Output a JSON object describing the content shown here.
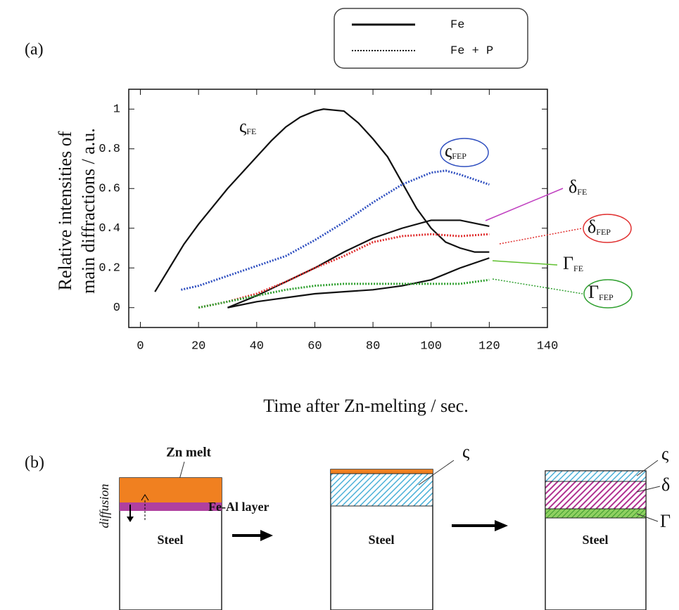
{
  "chart_data": {
    "type": "line",
    "panel_label": "(a)",
    "xlabel": "Time after Zn-melting / sec.",
    "ylabel": [
      "Relative intensities of",
      "main diffractions  / a.u."
    ],
    "xlim": [
      -4,
      140
    ],
    "xticks": [
      0,
      20,
      40,
      60,
      80,
      100,
      120,
      140
    ],
    "ylim": [
      -0.1,
      1.1
    ],
    "yticks": [
      0,
      0.2,
      0.4,
      0.6,
      0.8,
      1
    ],
    "legend": [
      {
        "name": "Fe",
        "style": "solid"
      },
      {
        "name": "Fe + P",
        "style": "dotted"
      }
    ],
    "series": [
      {
        "symbol": "ς",
        "subscript": "FE",
        "style": "solid",
        "color": "#111111",
        "label_color": "#111111",
        "x": [
          5,
          10,
          15,
          20,
          25,
          30,
          35,
          40,
          45,
          50,
          55,
          60,
          63,
          70,
          75,
          80,
          85,
          90,
          95,
          100,
          105,
          110,
          115,
          120
        ],
        "values": [
          0.08,
          0.2,
          0.32,
          0.42,
          0.51,
          0.6,
          0.68,
          0.76,
          0.84,
          0.91,
          0.96,
          0.99,
          1.0,
          0.99,
          0.93,
          0.85,
          0.76,
          0.63,
          0.5,
          0.4,
          0.33,
          0.3,
          0.28,
          0.28
        ]
      },
      {
        "symbol": "ς",
        "subscript": "FEP",
        "style": "dotted",
        "color": "#3050c0",
        "label_color": "#3050c0",
        "label_ellipse": true,
        "x": [
          14,
          20,
          30,
          40,
          50,
          60,
          70,
          80,
          90,
          100,
          105,
          110,
          120
        ],
        "values": [
          0.09,
          0.11,
          0.16,
          0.21,
          0.26,
          0.34,
          0.43,
          0.53,
          0.62,
          0.68,
          0.69,
          0.67,
          0.62
        ]
      },
      {
        "symbol": "δ",
        "subscript": "FE",
        "style": "solid",
        "color": "#111111",
        "label_color": "#c040c0",
        "x": [
          30,
          40,
          50,
          60,
          70,
          80,
          90,
          100,
          110,
          120
        ],
        "values": [
          0.0,
          0.06,
          0.13,
          0.2,
          0.28,
          0.35,
          0.4,
          0.44,
          0.44,
          0.41
        ]
      },
      {
        "symbol": "δ",
        "subscript": "FEP",
        "style": "dotted",
        "color": "#e03030",
        "label_color": "#e03030",
        "label_ellipse": true,
        "x": [
          20,
          30,
          40,
          50,
          60,
          70,
          80,
          90,
          100,
          110,
          120
        ],
        "values": [
          0.0,
          0.03,
          0.07,
          0.13,
          0.2,
          0.26,
          0.33,
          0.36,
          0.37,
          0.36,
          0.37
        ]
      },
      {
        "symbol": "Γ",
        "subscript": "FE",
        "style": "solid",
        "color": "#111111",
        "label_color": "#60c030",
        "x": [
          30,
          40,
          50,
          60,
          70,
          80,
          90,
          100,
          110,
          120
        ],
        "values": [
          0.0,
          0.03,
          0.05,
          0.07,
          0.08,
          0.09,
          0.11,
          0.14,
          0.2,
          0.25
        ]
      },
      {
        "symbol": "Γ",
        "subscript": "FEP",
        "style": "dotted",
        "color": "#30a030",
        "label_color": "#30a030",
        "label_ellipse": true,
        "x": [
          20,
          30,
          40,
          50,
          60,
          70,
          80,
          90,
          100,
          110,
          120
        ],
        "values": [
          0.0,
          0.03,
          0.06,
          0.09,
          0.11,
          0.12,
          0.12,
          0.12,
          0.12,
          0.12,
          0.14
        ]
      }
    ]
  },
  "diagram": {
    "panel_label": "(b)",
    "zn_melt": "Zn melt",
    "fe_al_layer": "Fe-Al layer",
    "diffusion": "diffusion",
    "steel": [
      "Steel",
      "Steel",
      "Steel"
    ],
    "phase_labels": [
      "ς",
      "ς",
      "δ",
      "Γ"
    ]
  }
}
